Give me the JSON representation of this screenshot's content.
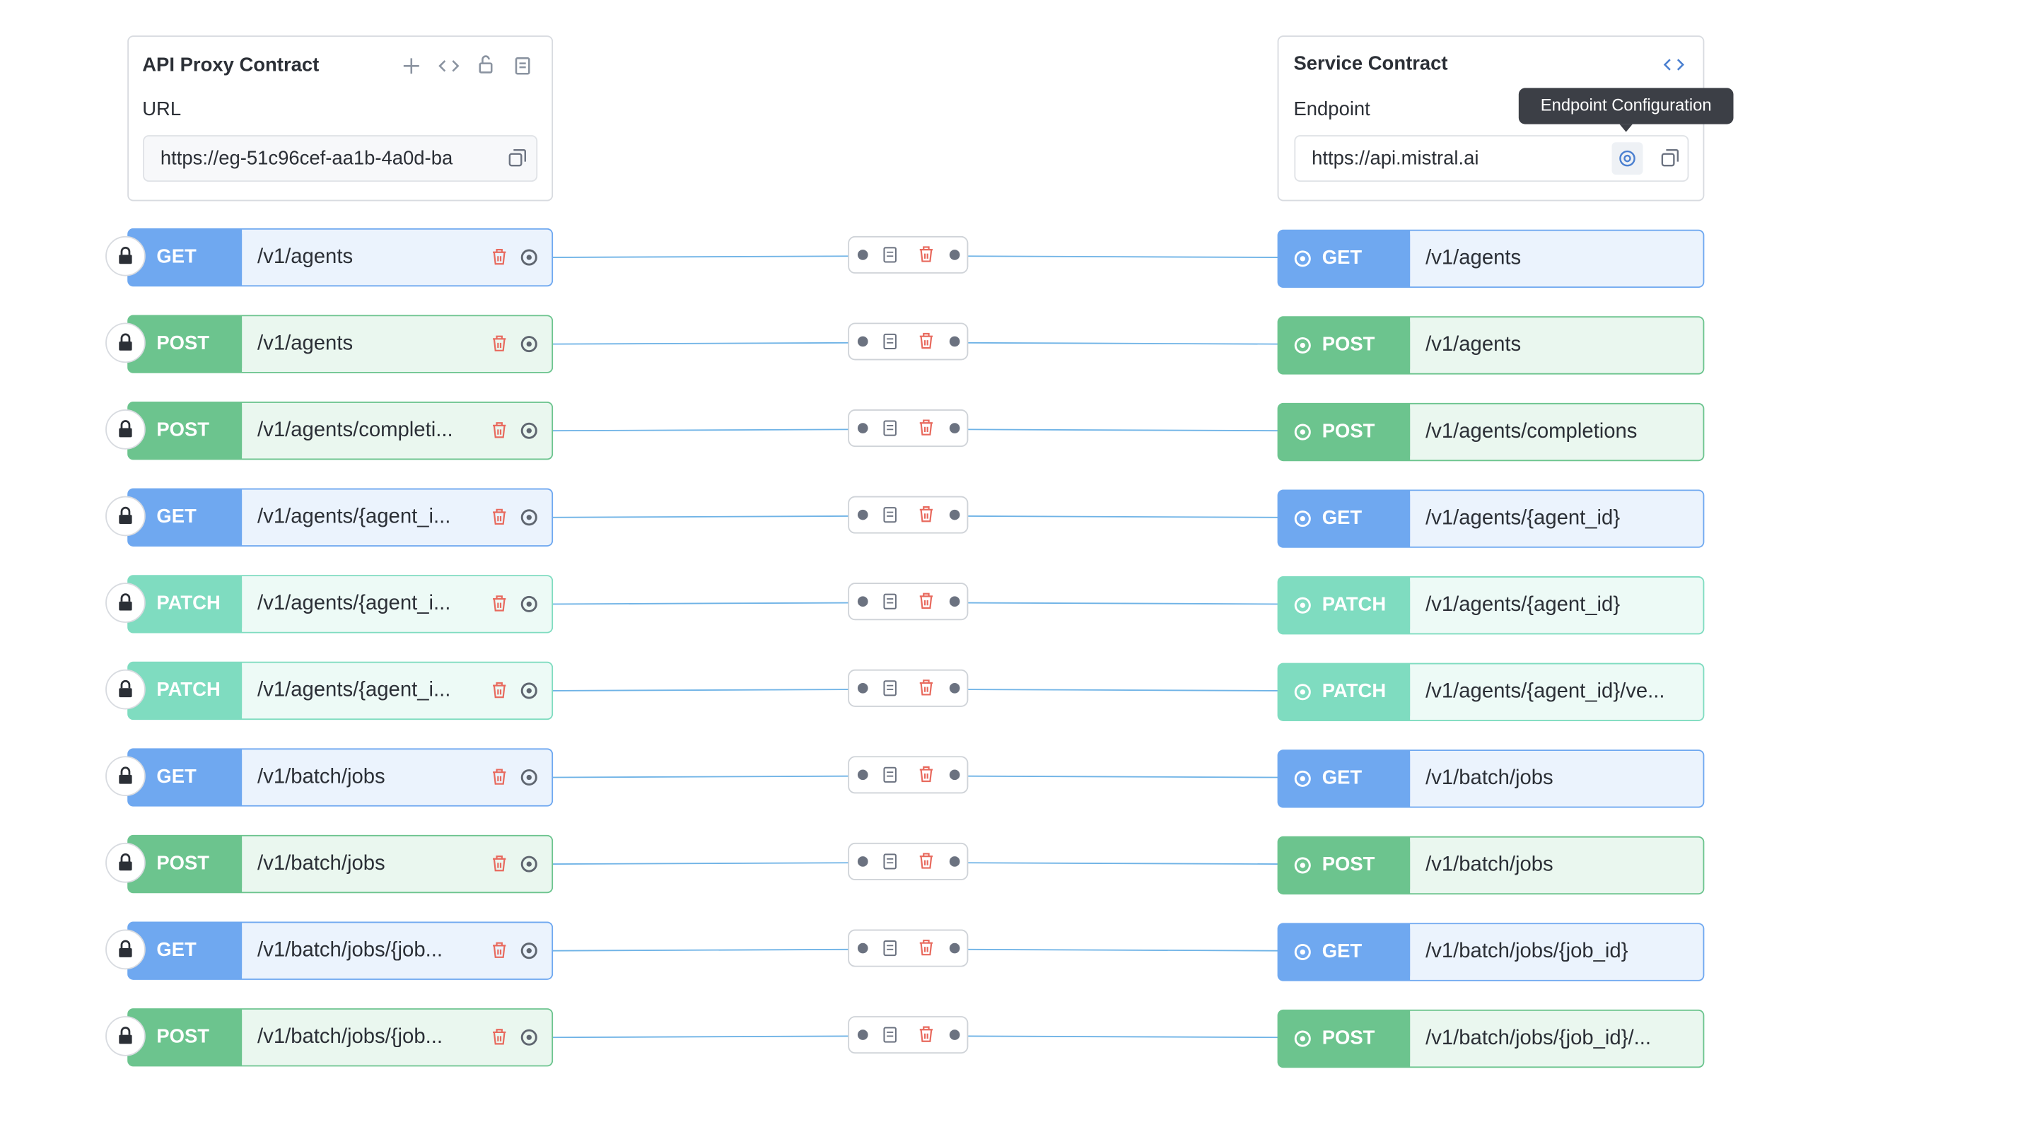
{
  "api_proxy_contract": {
    "title": "API Proxy Contract",
    "url_label": "URL",
    "url": "https://eg-51c96cef-aa1b-4a0d-ba"
  },
  "service_contract": {
    "title": "Service Contract",
    "endpoint_label": "Endpoint",
    "endpoint": "https://api.mistral.ai",
    "tooltip": "Endpoint Configuration"
  },
  "routes": [
    {
      "proxy_method": "GET",
      "proxy_path": "/v1/agents",
      "service_method": "GET",
      "service_path": "/v1/agents",
      "color": "#6fa8f0"
    },
    {
      "proxy_method": "POST",
      "proxy_path": "/v1/agents",
      "service_method": "POST",
      "service_path": "/v1/agents",
      "color": "#6cc48e"
    },
    {
      "proxy_method": "POST",
      "proxy_path": "/v1/agents/completi...",
      "service_method": "POST",
      "service_path": "/v1/agents/completions",
      "color": "#6cc48e"
    },
    {
      "proxy_method": "GET",
      "proxy_path": "/v1/agents/{agent_i...",
      "service_method": "GET",
      "service_path": "/v1/agents/{agent_id}",
      "color": "#6fa8f0"
    },
    {
      "proxy_method": "PATCH",
      "proxy_path": "/v1/agents/{agent_i...",
      "service_method": "PATCH",
      "service_path": "/v1/agents/{agent_id}",
      "color": "#7fdcc0"
    },
    {
      "proxy_method": "PATCH",
      "proxy_path": "/v1/agents/{agent_i...",
      "service_method": "PATCH",
      "service_path": "/v1/agents/{agent_id}/ve...",
      "color": "#7fdcc0"
    },
    {
      "proxy_method": "GET",
      "proxy_path": "/v1/batch/jobs",
      "service_method": "GET",
      "service_path": "/v1/batch/jobs",
      "color": "#6fa8f0"
    },
    {
      "proxy_method": "POST",
      "proxy_path": "/v1/batch/jobs",
      "service_method": "POST",
      "service_path": "/v1/batch/jobs",
      "color": "#6cc48e"
    },
    {
      "proxy_method": "GET",
      "proxy_path": "/v1/batch/jobs/{job...",
      "service_method": "GET",
      "service_path": "/v1/batch/jobs/{job_id}",
      "color": "#6fa8f0"
    },
    {
      "proxy_method": "POST",
      "proxy_path": "/v1/batch/jobs/{job...",
      "service_method": "POST",
      "service_path": "/v1/batch/jobs/{job_id}/...",
      "color": "#6cc48e"
    }
  ]
}
